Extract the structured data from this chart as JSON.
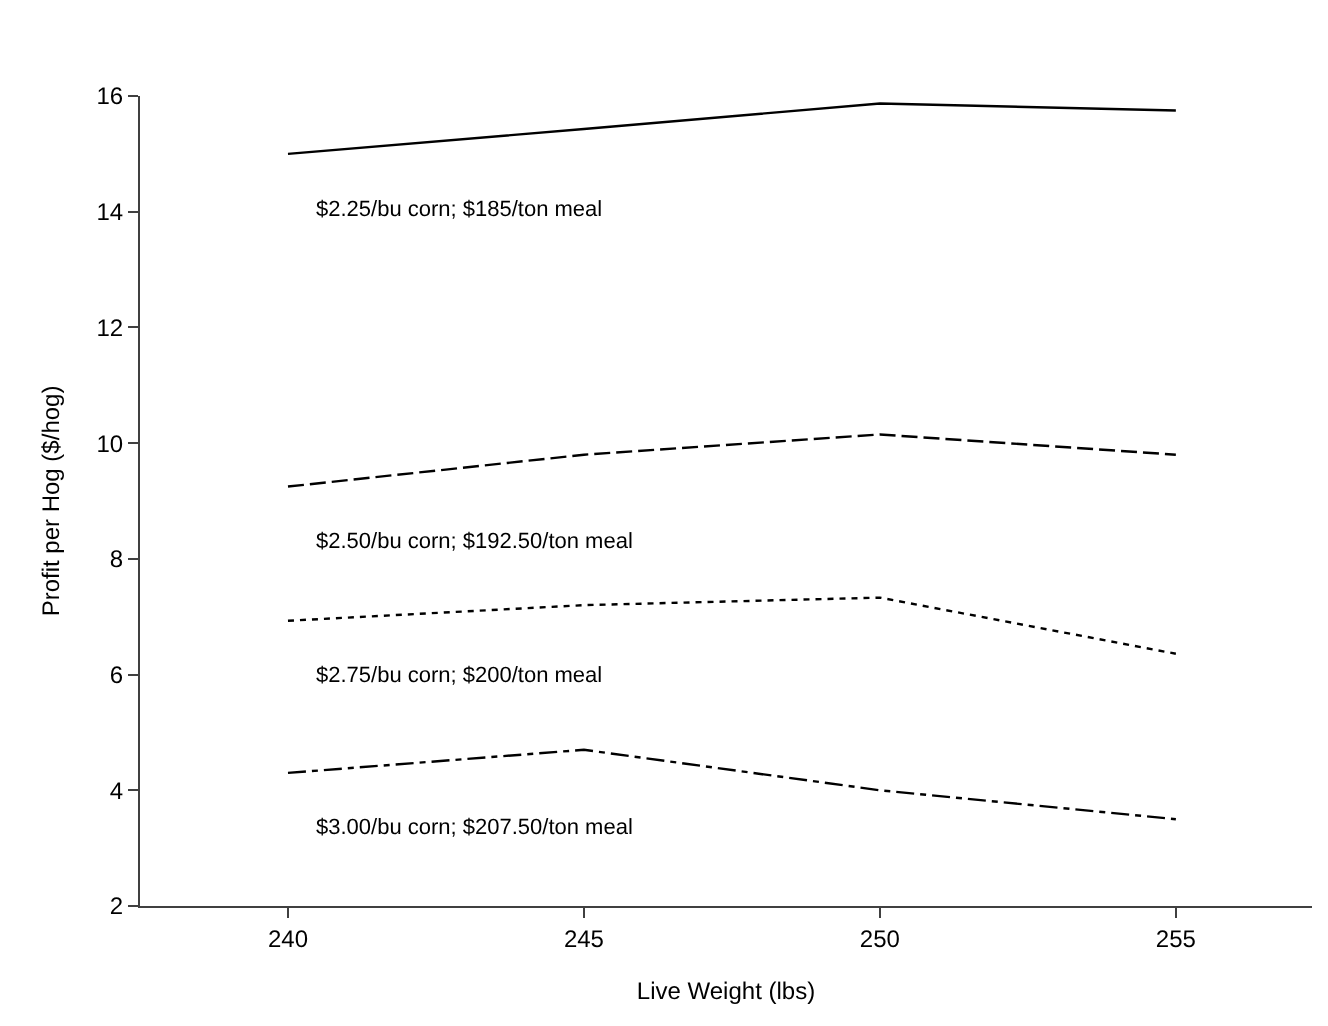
{
  "chart_data": {
    "type": "line",
    "xlabel": "Live Weight (lbs)",
    "ylabel": "Profit per Hog ($/hog)",
    "x": [
      240,
      245,
      250,
      255
    ],
    "series": [
      {
        "name": "$2.25/bu corn; $185/ton meal",
        "color": "#000000",
        "line_style": "solid",
        "values": [
          15.0,
          15.43,
          15.87,
          15.75
        ]
      },
      {
        "name": "$2.50/bu corn; $192.50/ton meal",
        "color": "#000000",
        "line_style": "dashed",
        "values": [
          9.25,
          9.8,
          10.15,
          9.8
        ]
      },
      {
        "name": "$2.75/bu corn; $200/ton meal",
        "color": "#000000",
        "line_style": "dotted",
        "values": [
          6.93,
          7.2,
          7.33,
          6.36
        ]
      },
      {
        "name": "$3.00/bu corn; $207.50/ton meal",
        "color": "#000000",
        "line_style": "dashdot",
        "values": [
          4.3,
          4.7,
          4.0,
          3.5
        ]
      }
    ],
    "xlim": [
      237.5,
      257.3
    ],
    "xticks": [
      240,
      245,
      250,
      255
    ],
    "ylim": [
      2,
      16
    ],
    "yticks": [
      2,
      4,
      6,
      8,
      10,
      12,
      14,
      16
    ],
    "legend": false,
    "marker": "none"
  }
}
